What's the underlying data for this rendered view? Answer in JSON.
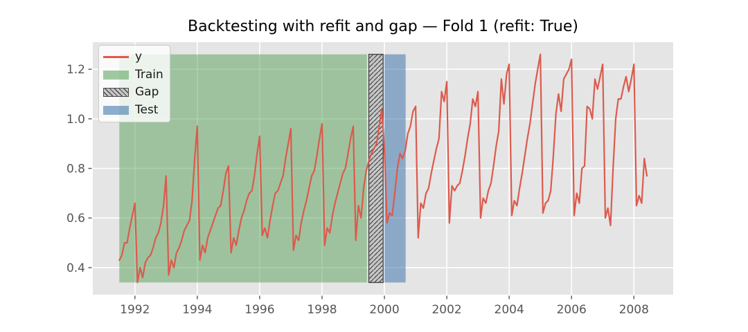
{
  "chart_data": {
    "type": "line",
    "title": "Backtesting with refit and gap — Fold 1 (refit: True)",
    "xlabel": "",
    "ylabel": "",
    "xlim": [
      1990.65,
      2009.26
    ],
    "ylim": [
      0.291,
      1.309
    ],
    "x_ticks": [
      1992,
      1994,
      1996,
      1998,
      2000,
      2002,
      2004,
      2006,
      2008
    ],
    "y_ticks": [
      0.4,
      0.6,
      0.8,
      1.0,
      1.2
    ],
    "grid": true,
    "background": "#e5e5e5",
    "grid_color": "#ffffff",
    "tick_color": "#555555",
    "regions": [
      {
        "name": "Train",
        "x_start": 1991.5,
        "x_end": 1999.44,
        "y_min": 0.34,
        "y_max": 1.26,
        "fill": "rgba(70,150,70,0.45)"
      },
      {
        "name": "Gap",
        "x_start": 1999.5,
        "x_end": 1999.96,
        "y_min": 0.34,
        "y_max": 1.26,
        "fill": "rgba(128,128,128,0.3)",
        "hatch": "///",
        "hatch_color": "#4a4a4a",
        "edge": "#444444"
      },
      {
        "name": "Test",
        "x_start": 2000.0,
        "x_end": 2000.68,
        "y_min": 0.34,
        "y_max": 1.26,
        "fill": "rgba(50,110,168,0.5)"
      }
    ],
    "series": [
      {
        "name": "y",
        "color": "#dc5a4c",
        "start_year": 1991,
        "start_month": 7,
        "frequency": "monthly",
        "values": [
          0.43,
          0.45,
          0.5,
          0.5,
          0.56,
          0.61,
          0.66,
          0.34,
          0.4,
          0.36,
          0.42,
          0.44,
          0.45,
          0.48,
          0.52,
          0.54,
          0.58,
          0.65,
          0.77,
          0.37,
          0.43,
          0.4,
          0.46,
          0.48,
          0.51,
          0.55,
          0.57,
          0.59,
          0.67,
          0.84,
          0.97,
          0.43,
          0.49,
          0.46,
          0.52,
          0.55,
          0.58,
          0.61,
          0.64,
          0.65,
          0.71,
          0.78,
          0.81,
          0.46,
          0.52,
          0.49,
          0.55,
          0.6,
          0.63,
          0.67,
          0.7,
          0.71,
          0.77,
          0.86,
          0.93,
          0.53,
          0.56,
          0.52,
          0.59,
          0.65,
          0.7,
          0.71,
          0.74,
          0.77,
          0.84,
          0.9,
          0.96,
          0.47,
          0.53,
          0.51,
          0.58,
          0.63,
          0.67,
          0.72,
          0.77,
          0.79,
          0.85,
          0.92,
          0.98,
          0.49,
          0.56,
          0.54,
          0.61,
          0.66,
          0.7,
          0.74,
          0.78,
          0.8,
          0.86,
          0.92,
          0.97,
          0.51,
          0.65,
          0.6,
          0.72,
          0.79,
          0.83,
          0.86,
          0.88,
          0.9,
          0.97,
          1.04,
          0.88,
          0.58,
          0.62,
          0.61,
          0.7,
          0.8,
          0.86,
          0.84,
          0.87,
          0.94,
          0.97,
          1.03,
          1.05,
          0.52,
          0.66,
          0.64,
          0.7,
          0.72,
          0.78,
          0.83,
          0.88,
          0.92,
          1.11,
          1.07,
          1.15,
          0.58,
          0.73,
          0.71,
          0.73,
          0.74,
          0.79,
          0.85,
          0.92,
          0.98,
          1.08,
          1.05,
          1.11,
          0.6,
          0.68,
          0.66,
          0.71,
          0.74,
          0.81,
          0.89,
          0.95,
          1.16,
          1.06,
          1.18,
          1.22,
          0.61,
          0.67,
          0.65,
          0.72,
          0.78,
          0.85,
          0.92,
          0.98,
          1.06,
          1.14,
          1.2,
          1.26,
          0.62,
          0.66,
          0.67,
          0.71,
          0.85,
          1.02,
          1.1,
          1.03,
          1.16,
          1.18,
          1.2,
          1.24,
          0.61,
          0.7,
          0.66,
          0.8,
          0.81,
          1.05,
          1.04,
          1.0,
          1.16,
          1.12,
          1.17,
          1.22,
          0.6,
          0.64,
          0.57,
          0.8,
          1.0,
          1.08,
          1.08,
          1.13,
          1.17,
          1.11,
          1.16,
          1.22,
          0.65,
          0.69,
          0.66,
          0.84,
          0.77
        ]
      }
    ],
    "legend": {
      "position": "upper left",
      "items": [
        {
          "label": "y",
          "swatch": "line",
          "color": "#e2574b"
        },
        {
          "label": "Train",
          "swatch": "patch",
          "color": "rgba(70,150,70,0.5)"
        },
        {
          "label": "Gap",
          "swatch": "patch-hatched",
          "color": "#c6c6c6"
        },
        {
          "label": "Test",
          "swatch": "patch",
          "color": "rgba(50,110,168,0.55)"
        }
      ]
    }
  }
}
